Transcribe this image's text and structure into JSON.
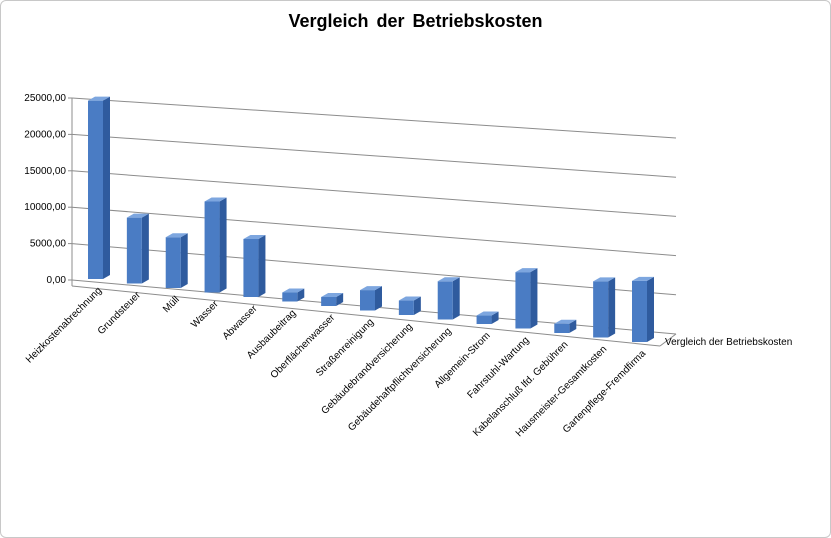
{
  "chart_data": {
    "type": "bar",
    "title": "Vergleich  der Betriebskosten",
    "xlabel": "",
    "ylabel": "",
    "ylim": [
      0,
      25000
    ],
    "y_ticks": [
      "0,00",
      "5000,00",
      "10000,00",
      "15000,00",
      "20000,00",
      "25000,00"
    ],
    "grid": true,
    "three_d": true,
    "categories": [
      "Heizkostenabrechnung",
      "Grundsteuer",
      "Müll",
      "Wasser",
      "Abwasser",
      "Ausbaubeitrag",
      "Oberflächenwasser",
      "Straßenreinigung",
      "Gebäudebrandversicherung",
      "Gebäudehaftpflichtversicherung",
      "Allgemein-Strom",
      "Fahrstuhl-Wartung",
      "Kabelanschluß lfd. Gebühren",
      "Hausmeister-Gesamtkosten",
      "Gartenpflege-Fremdfirma"
    ],
    "series": [
      {
        "name": "Vergleich der Betriebskosten",
        "values": [
          24500,
          9000,
          6900,
          12300,
          7800,
          1200,
          1200,
          2700,
          1900,
          5000,
          1100,
          7300,
          1200,
          7200,
          7800
        ]
      }
    ],
    "colors": {
      "bar_front": "#4a7cc4",
      "bar_side": "#2f5b9e",
      "bar_top": "#7da6df",
      "grid": "#8c8c8c"
    }
  }
}
